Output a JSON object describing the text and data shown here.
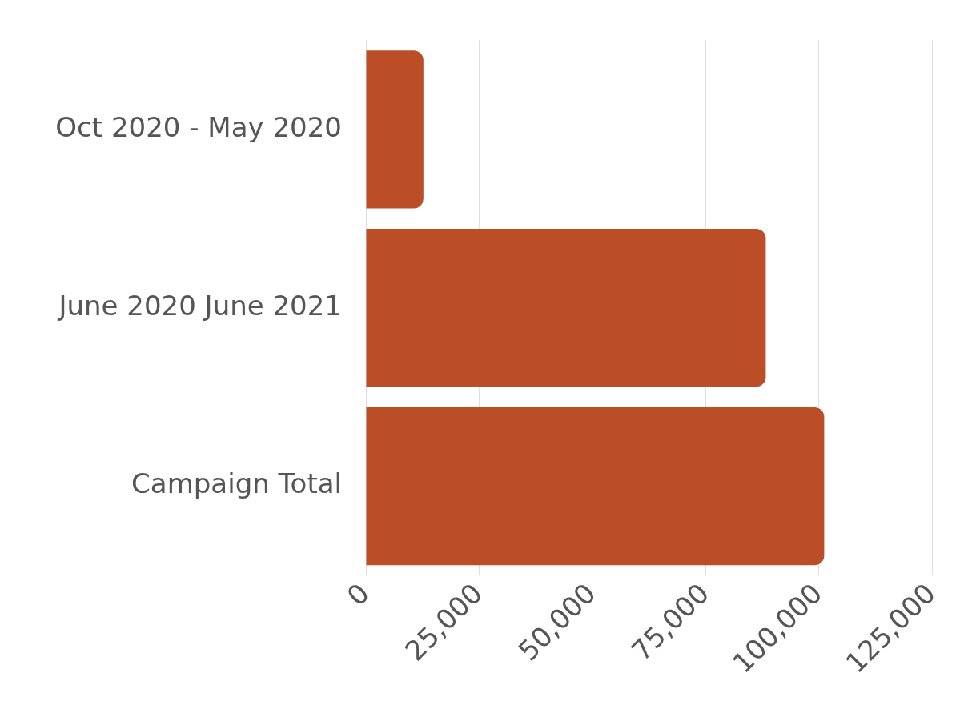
{
  "chart_data": {
    "type": "bar",
    "orientation": "horizontal",
    "categories": [
      "Oct 2020 - May 2020",
      "June 2020 June 2021",
      "Campaign Total"
    ],
    "values": [
      12700,
      88300,
      101200
    ],
    "color": "#bc4e27",
    "xlim": [
      0,
      125000
    ],
    "xticks": [
      {
        "value": 0,
        "label": "0"
      },
      {
        "value": 25000,
        "label": "25,000"
      },
      {
        "value": 50000,
        "label": "50,000"
      },
      {
        "value": 75000,
        "label": "75,000"
      },
      {
        "value": 100000,
        "label": "100,000"
      },
      {
        "value": 125000,
        "label": "125,000"
      }
    ],
    "grid": "x",
    "legend": false
  }
}
